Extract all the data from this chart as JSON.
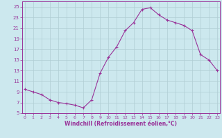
{
  "x": [
    0,
    1,
    2,
    3,
    4,
    5,
    6,
    7,
    8,
    9,
    10,
    11,
    12,
    13,
    14,
    15,
    16,
    17,
    18,
    19,
    20,
    21,
    22,
    23
  ],
  "y": [
    9.5,
    9.0,
    8.5,
    7.5,
    7.0,
    6.8,
    6.5,
    6.0,
    7.5,
    12.5,
    15.5,
    17.5,
    20.5,
    22.0,
    24.5,
    24.8,
    23.5,
    22.5,
    22.0,
    21.5,
    20.5,
    16.0,
    15.0,
    13.0
  ],
  "line_color": "#993399",
  "marker": "+",
  "markersize": 3,
  "linewidth": 0.8,
  "background_color": "#cce8ee",
  "grid_color": "#b0cdd4",
  "xlabel": "Windchill (Refroidissement éolien,°C)",
  "ylabel": "",
  "yticks": [
    5,
    7,
    9,
    11,
    13,
    15,
    17,
    19,
    21,
    23,
    25
  ],
  "xticks": [
    0,
    1,
    2,
    3,
    4,
    5,
    6,
    7,
    8,
    9,
    10,
    11,
    12,
    13,
    14,
    15,
    16,
    17,
    18,
    19,
    20,
    21,
    22,
    23
  ],
  "ylim": [
    5,
    26
  ],
  "xlim": [
    -0.3,
    23.3
  ],
  "tick_color": "#993399",
  "axis_color": "#993399"
}
